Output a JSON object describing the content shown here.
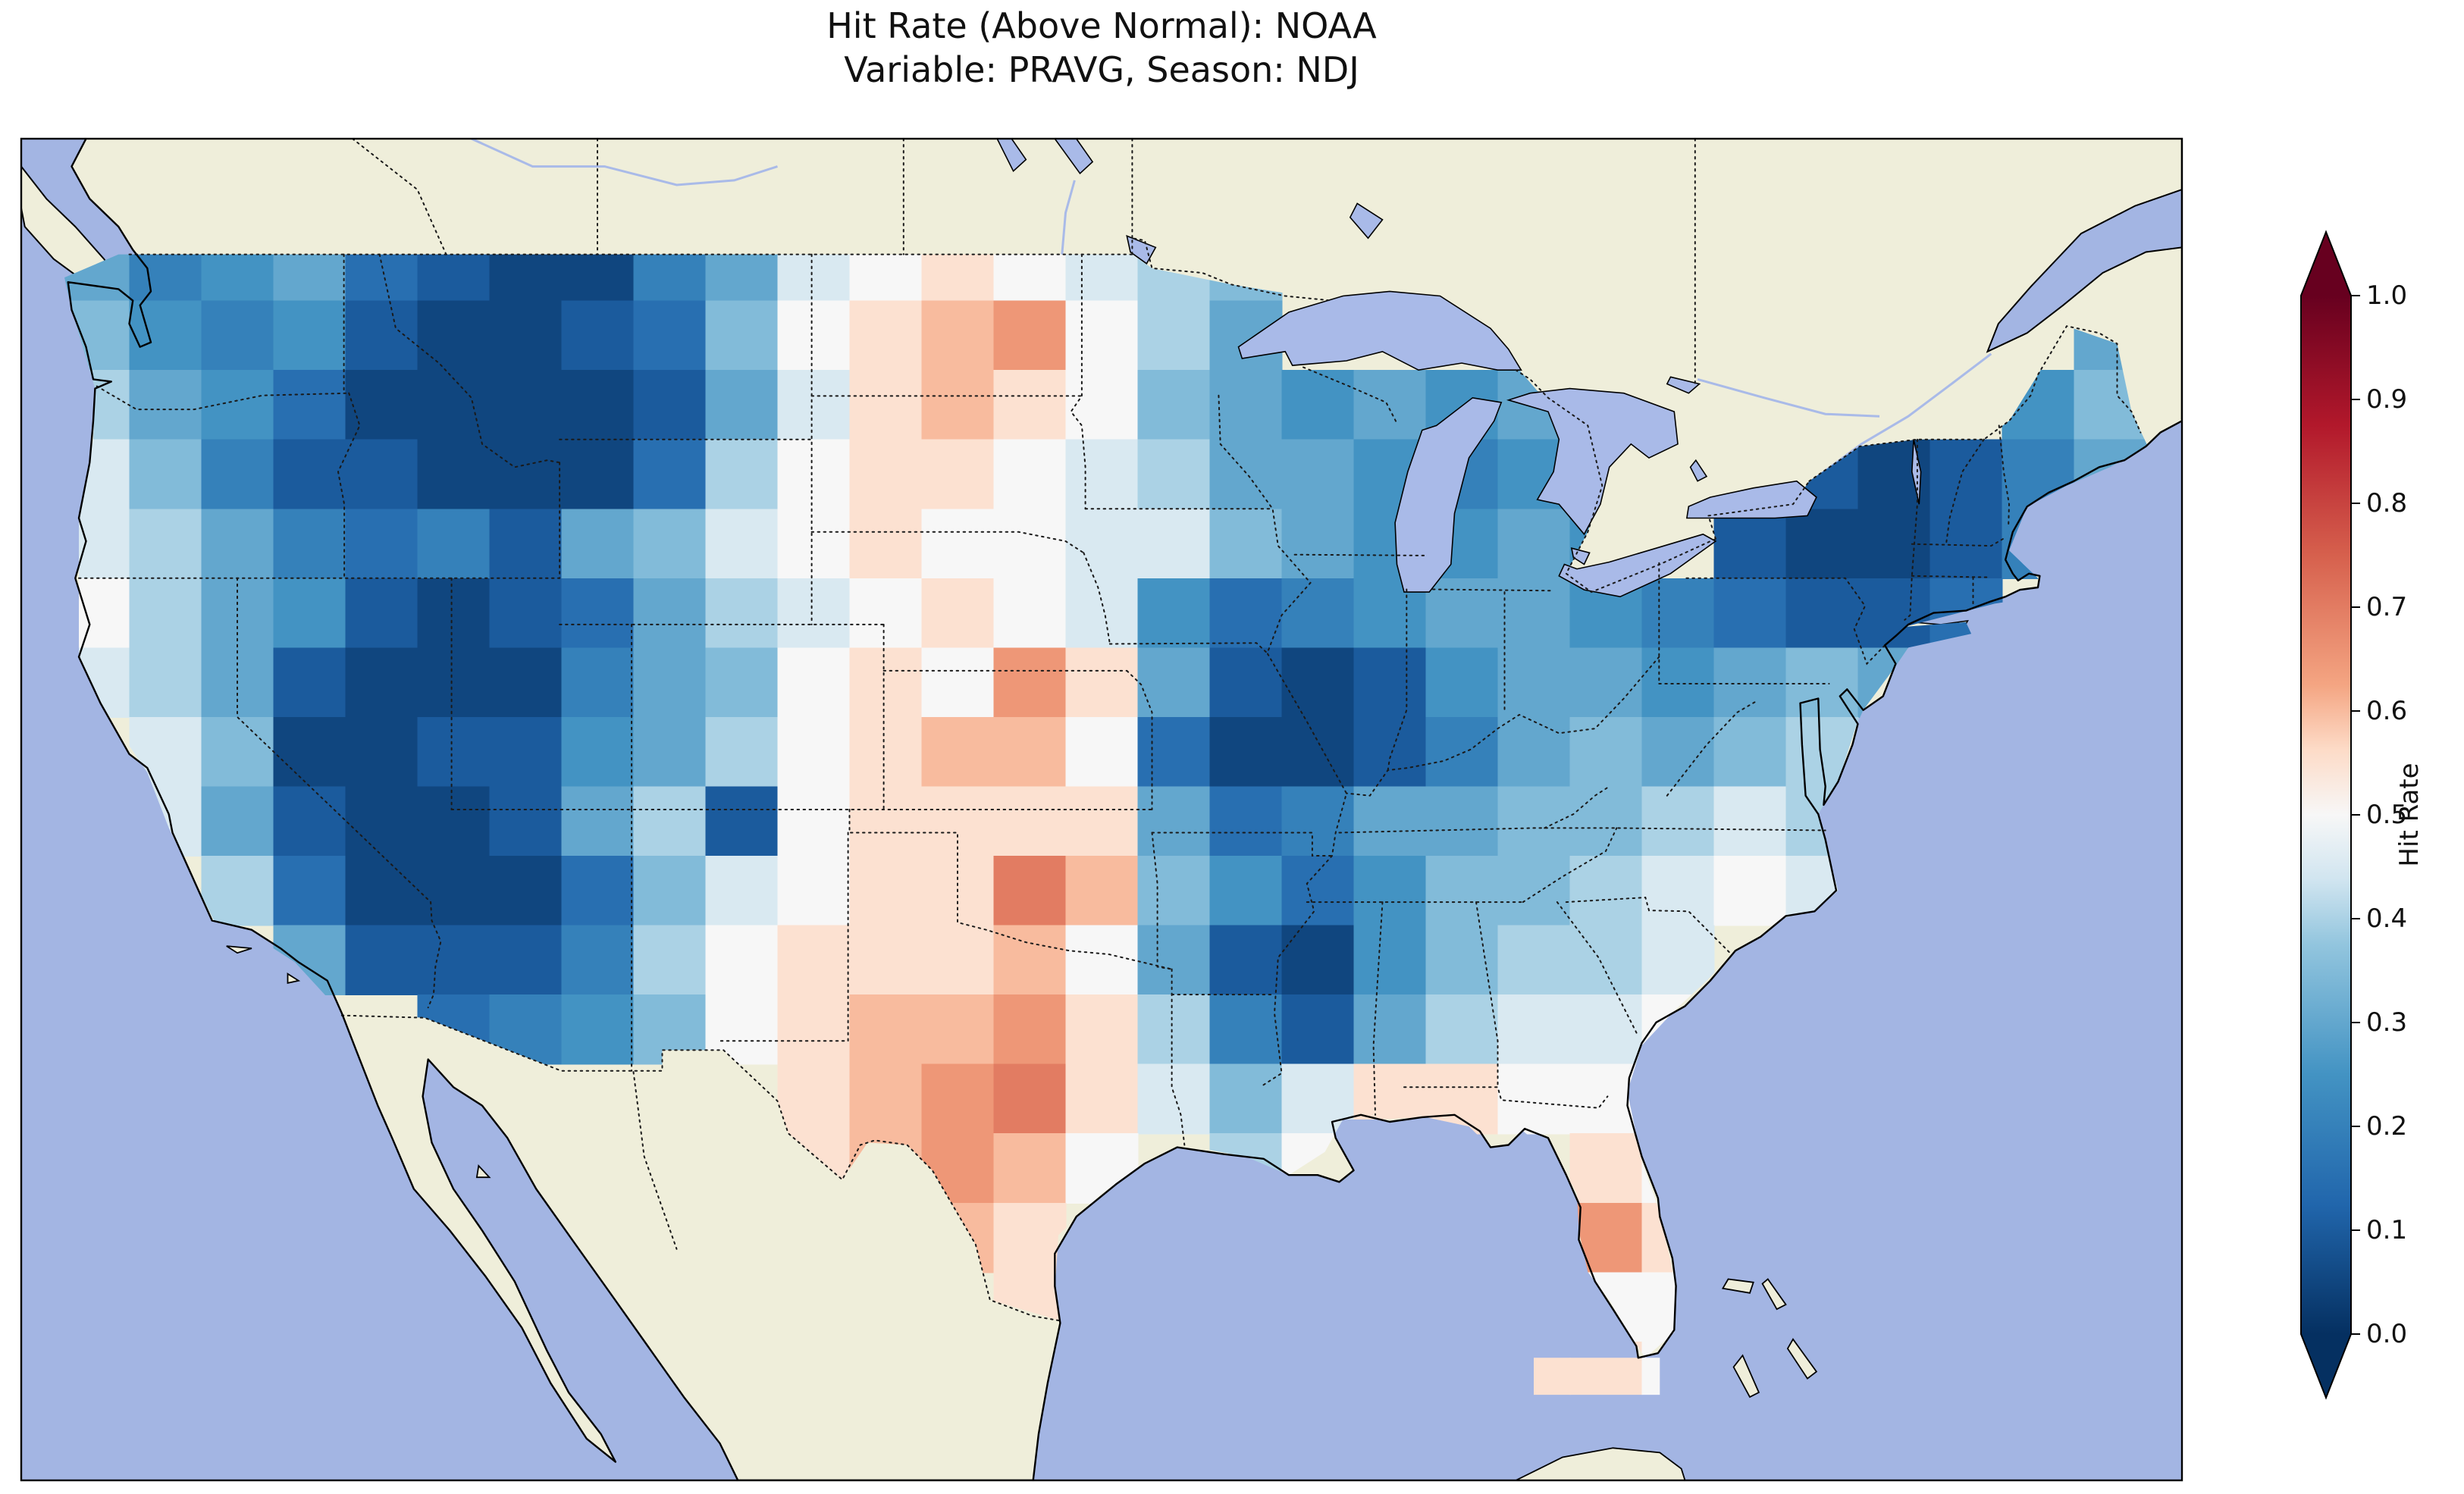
{
  "title": {
    "line1": "Hit Rate (Above Normal): NOAA",
    "line2": "Variable: PRAVG, Season: NDJ"
  },
  "colorbar": {
    "label": "Hit Rate",
    "ticks": [
      "1.0",
      "0.9",
      "0.8",
      "0.7",
      "0.6",
      "0.5",
      "0.4",
      "0.3",
      "0.2",
      "0.1",
      "0.0"
    ],
    "extend_over_color": "#67001f",
    "extend_under_color": "#053061",
    "colormap_stops": [
      {
        "v": 0.0,
        "c": "#053061"
      },
      {
        "v": 0.125,
        "c": "#2166ac"
      },
      {
        "v": 0.25,
        "c": "#4393c3"
      },
      {
        "v": 0.375,
        "c": "#92c5de"
      },
      {
        "v": 0.4375,
        "c": "#d1e5f0"
      },
      {
        "v": 0.5,
        "c": "#f7f7f7"
      },
      {
        "v": 0.5625,
        "c": "#fddbc7"
      },
      {
        "v": 0.625,
        "c": "#f4a582"
      },
      {
        "v": 0.75,
        "c": "#d6604d"
      },
      {
        "v": 0.875,
        "c": "#b2182b"
      },
      {
        "v": 1.0,
        "c": "#67001f"
      }
    ]
  },
  "map_colors": {
    "ocean": "#a3b5e3",
    "land": "#efeeda",
    "lake": "#a9bae8",
    "coastline": "#000000",
    "border": "#1a1a1a",
    "frame": "#000000"
  },
  "chart_data": {
    "type": "heatmap",
    "title": "Hit Rate (Above Normal): NOAA",
    "subtitle": "Variable: PRAVG, Season: NDJ",
    "source": "NOAA",
    "variable": "PRAVG",
    "season": "NDJ",
    "colorbar_label": "Hit Rate",
    "colormap": "RdBu_r",
    "value_range": [
      0.0,
      1.0
    ],
    "region": "Contiguous United States",
    "lon_range": [
      -125,
      -67
    ],
    "lat_range": [
      24,
      49.5
    ],
    "legend_position": "right colorbar, extended both ends",
    "grid": {
      "ncols": 29,
      "nrows": 17,
      "lon_edge_start": -125,
      "lon_step": 2,
      "lat_edge_start": 49.5,
      "lat_step": -1.5,
      "values": [
        [
          0.3,
          0.2,
          0.25,
          0.3,
          0.15,
          0.1,
          0.05,
          0.05,
          0.2,
          0.3,
          0.45,
          0.5,
          0.55,
          0.5,
          0.45,
          0.4,
          0.35,
          null,
          null,
          null,
          null,
          null,
          null,
          null,
          null,
          null,
          null,
          null,
          null
        ],
        [
          0.35,
          0.25,
          0.2,
          0.25,
          0.1,
          0.05,
          0.05,
          0.1,
          0.15,
          0.35,
          0.5,
          0.55,
          0.6,
          0.65,
          0.5,
          0.4,
          0.3,
          null,
          null,
          null,
          null,
          null,
          null,
          null,
          null,
          null,
          null,
          null,
          0.3
        ],
        [
          0.4,
          0.3,
          0.25,
          0.15,
          0.05,
          0.05,
          0.05,
          0.05,
          0.1,
          0.3,
          0.45,
          0.55,
          0.6,
          0.55,
          0.5,
          0.35,
          0.3,
          0.25,
          0.3,
          0.25,
          0.3,
          null,
          null,
          null,
          null,
          null,
          null,
          0.25,
          0.35
        ],
        [
          0.45,
          0.35,
          0.2,
          0.1,
          0.1,
          0.05,
          0.05,
          0.05,
          0.15,
          0.4,
          0.5,
          0.55,
          0.55,
          0.5,
          0.45,
          0.4,
          0.3,
          0.3,
          0.25,
          0.2,
          0.25,
          null,
          null,
          null,
          0.1,
          0.05,
          0.1,
          0.2,
          0.3
        ],
        [
          0.45,
          0.4,
          0.3,
          0.2,
          0.15,
          0.2,
          0.1,
          0.3,
          0.35,
          0.45,
          0.5,
          0.55,
          0.5,
          0.5,
          0.45,
          0.45,
          0.35,
          0.3,
          0.25,
          0.25,
          0.3,
          0.25,
          null,
          0.1,
          0.05,
          0.05,
          0.1,
          0.2,
          null
        ],
        [
          0.5,
          0.4,
          0.3,
          0.25,
          0.1,
          0.05,
          0.1,
          0.15,
          0.3,
          0.4,
          0.45,
          0.5,
          0.55,
          0.5,
          0.45,
          0.25,
          0.15,
          0.2,
          0.25,
          0.3,
          0.3,
          0.25,
          0.2,
          0.15,
          0.1,
          0.1,
          0.15,
          null,
          null
        ],
        [
          0.45,
          0.4,
          0.3,
          0.1,
          0.05,
          0.05,
          0.05,
          0.2,
          0.3,
          0.35,
          0.5,
          0.55,
          0.5,
          0.65,
          0.55,
          0.3,
          0.1,
          0.05,
          0.1,
          0.25,
          0.3,
          0.3,
          0.25,
          0.3,
          0.35,
          0.3,
          null,
          null,
          null
        ],
        [
          null,
          0.45,
          0.35,
          0.05,
          0.05,
          0.1,
          0.1,
          0.25,
          0.3,
          0.4,
          0.5,
          0.55,
          0.6,
          0.6,
          0.5,
          0.15,
          0.05,
          0.05,
          0.1,
          0.2,
          0.3,
          0.35,
          0.3,
          0.35,
          0.4,
          null,
          null,
          null,
          null
        ],
        [
          null,
          0.45,
          0.3,
          0.1,
          0.05,
          0.05,
          0.1,
          0.3,
          0.4,
          0.1,
          0.5,
          0.55,
          0.55,
          0.55,
          0.55,
          0.3,
          0.15,
          0.2,
          0.3,
          0.3,
          0.35,
          0.35,
          0.4,
          0.45,
          0.4,
          null,
          null,
          null,
          null
        ],
        [
          null,
          null,
          0.4,
          0.15,
          0.05,
          0.05,
          0.05,
          0.15,
          0.35,
          0.45,
          0.5,
          0.55,
          0.55,
          0.7,
          0.6,
          0.35,
          0.25,
          0.15,
          0.25,
          0.35,
          0.35,
          0.4,
          0.45,
          0.5,
          0.45,
          null,
          null,
          null,
          null
        ],
        [
          null,
          null,
          null,
          0.3,
          0.1,
          0.1,
          0.1,
          0.2,
          0.4,
          0.5,
          0.55,
          0.55,
          0.55,
          0.6,
          0.5,
          0.3,
          0.1,
          0.05,
          0.25,
          0.35,
          0.4,
          0.4,
          0.45,
          null,
          null,
          null,
          null,
          null,
          null
        ],
        [
          null,
          null,
          null,
          null,
          null,
          0.15,
          0.2,
          0.25,
          0.35,
          0.5,
          0.55,
          0.6,
          0.6,
          0.65,
          0.55,
          0.4,
          0.2,
          0.1,
          0.3,
          0.4,
          0.45,
          0.45,
          0.5,
          null,
          null,
          null,
          null,
          null,
          null
        ],
        [
          null,
          null,
          null,
          null,
          null,
          null,
          null,
          null,
          null,
          null,
          0.55,
          0.6,
          0.65,
          0.7,
          0.55,
          0.45,
          0.35,
          0.45,
          0.55,
          0.55,
          0.5,
          0.5,
          0.45,
          null,
          null,
          null,
          null,
          null,
          null
        ],
        [
          null,
          null,
          null,
          null,
          null,
          null,
          null,
          null,
          null,
          null,
          0.55,
          0.6,
          0.65,
          0.6,
          0.5,
          null,
          0.4,
          0.5,
          null,
          null,
          null,
          0.55,
          0.5,
          null,
          null,
          null,
          null,
          null,
          null
        ],
        [
          null,
          null,
          null,
          null,
          null,
          null,
          null,
          null,
          null,
          null,
          null,
          null,
          0.6,
          0.55,
          null,
          null,
          null,
          null,
          null,
          null,
          null,
          0.65,
          0.55,
          null,
          null,
          null,
          null,
          null,
          null
        ],
        [
          null,
          null,
          null,
          null,
          null,
          null,
          null,
          null,
          null,
          null,
          null,
          null,
          null,
          0.55,
          null,
          null,
          null,
          null,
          null,
          null,
          null,
          0.5,
          0.5,
          null,
          null,
          null,
          null,
          null,
          null
        ],
        [
          null,
          null,
          null,
          null,
          null,
          null,
          null,
          null,
          null,
          null,
          null,
          null,
          null,
          null,
          null,
          null,
          null,
          null,
          null,
          null,
          0.55,
          0.55,
          0.5,
          null,
          null,
          null,
          null,
          null,
          null
        ]
      ]
    }
  }
}
